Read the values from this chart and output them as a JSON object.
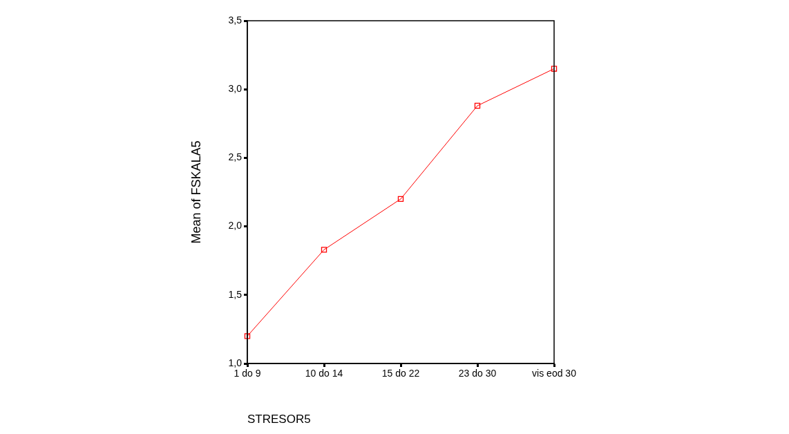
{
  "chart_data": {
    "type": "line",
    "xlabel": "STRESOR5",
    "ylabel": "Mean of FSKALA5",
    "categories": [
      "1 do 9",
      "10 do 14",
      "15 do 22",
      "23 do 30",
      "vis eod 30"
    ],
    "series": [
      {
        "color": "#ff0000",
        "values": [
          1.2,
          1.83,
          2.2,
          2.88,
          3.15
        ]
      }
    ],
    "ylim": [
      1.0,
      3.5
    ],
    "yticks": [
      {
        "value": 1.0,
        "label": "1,0"
      },
      {
        "value": 1.5,
        "label": "1,5"
      },
      {
        "value": 2.0,
        "label": "2,0"
      },
      {
        "value": 2.5,
        "label": "2,5"
      },
      {
        "value": 3.0,
        "label": "3,0"
      },
      {
        "value": 3.5,
        "label": "3,5"
      }
    ],
    "grid": false,
    "legend": false,
    "marker": "square",
    "line_style": "solid"
  }
}
